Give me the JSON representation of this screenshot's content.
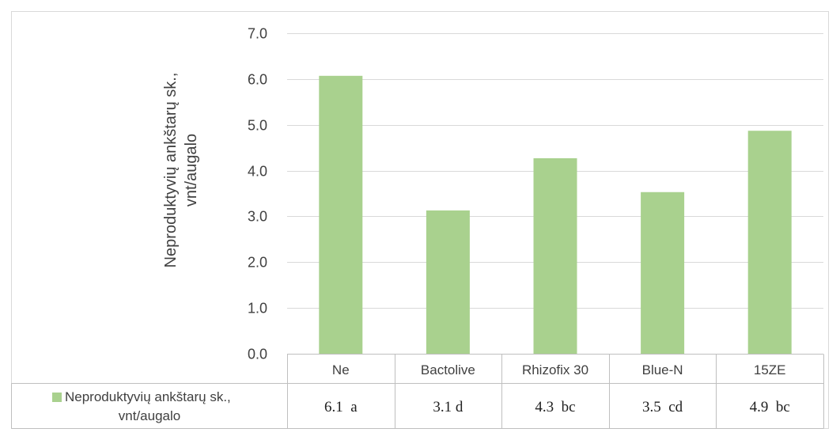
{
  "chart_data": {
    "type": "bar",
    "title": "",
    "ylabel": "Neproduktyvių ankštarų sk., vnt/augalo",
    "ylim": [
      0,
      7
    ],
    "yticks": [
      "0.0",
      "1.0",
      "2.0",
      "3.0",
      "4.0",
      "5.0",
      "6.0",
      "7.0"
    ],
    "categories": [
      "Ne",
      "Bactolive",
      "Rhizofix 30",
      "Blue-N",
      "15ZE"
    ],
    "series": [
      {
        "name": "Neproduktyvių ankštarų sk., vnt/augalo",
        "values": [
          6.07,
          3.13,
          4.27,
          3.53,
          4.87
        ],
        "color": "#a9d18e"
      }
    ],
    "data_table": {
      "legend_label": "Neproduktyvių ankštarų sk., vnt/augalo",
      "cells": [
        "6.1  a",
        "3.1 d",
        "4.3  bc",
        "3.5  cd",
        "4.9  bc"
      ]
    },
    "grid": true,
    "legend_position": "bottom (data table)",
    "gridline_color": "#d9d9d9",
    "border_color": "#bfbfbf"
  }
}
